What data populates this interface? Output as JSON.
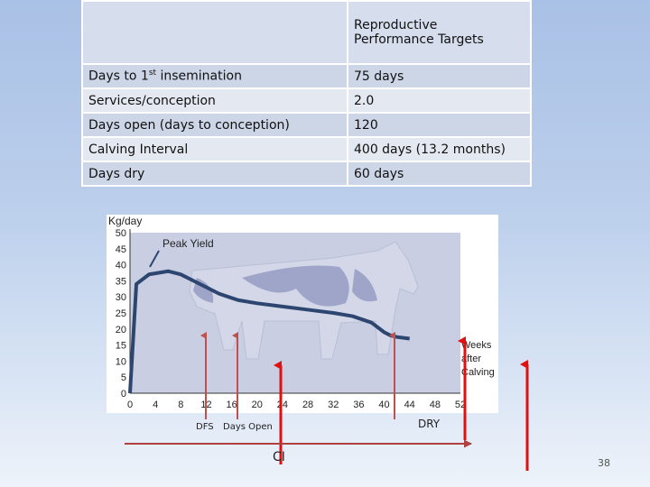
{
  "table": {
    "header": [
      "",
      "Reproductive\nPerformance Targets"
    ],
    "rows": [
      {
        "label": "Days to 1",
        "label_sup": "st",
        "label_rest": " insemination",
        "value": "75 days"
      },
      {
        "label": "Services/conception",
        "value": "2.0"
      },
      {
        "label": "Days open (days to conception)",
        "value": "120"
      },
      {
        "label": "Calving Interval",
        "value": "400 days (13.2 months)"
      },
      {
        "label": "Days dry",
        "value": "60 days"
      }
    ]
  },
  "chart_data": {
    "type": "line",
    "ylabel": "Kg/day",
    "annotation": "Peak Yield",
    "xlabel_lines": [
      "Weeks",
      "after",
      "Calving"
    ],
    "y_ticks": [
      0,
      5,
      10,
      15,
      20,
      25,
      30,
      35,
      40,
      45,
      50
    ],
    "x_ticks": [
      0,
      4,
      8,
      12,
      16,
      20,
      24,
      28,
      32,
      36,
      40,
      44,
      48,
      52
    ],
    "xlim": [
      0,
      52
    ],
    "ylim": [
      0,
      50
    ],
    "series": [
      {
        "x": [
          0,
          1,
          3,
          6,
          8,
          10,
          12,
          14,
          17,
          20,
          24,
          28,
          32,
          35,
          38,
          40,
          41,
          42,
          44
        ],
        "y": [
          0,
          34,
          37,
          38,
          37,
          35,
          33,
          31,
          29,
          28,
          27,
          26,
          25,
          24,
          22,
          19,
          18,
          17.5,
          17
        ],
        "color": "#2c4670"
      }
    ],
    "background": "#c9cee2"
  },
  "labels": {
    "dfs": "DFS",
    "days_open": "Days Open",
    "dry": "DRY",
    "ci": "CI"
  },
  "page_number": "38",
  "colors": {
    "arrow_red": "#e01010",
    "arrow_dark_red": "#c0504d",
    "ci_line": "#b04040"
  }
}
